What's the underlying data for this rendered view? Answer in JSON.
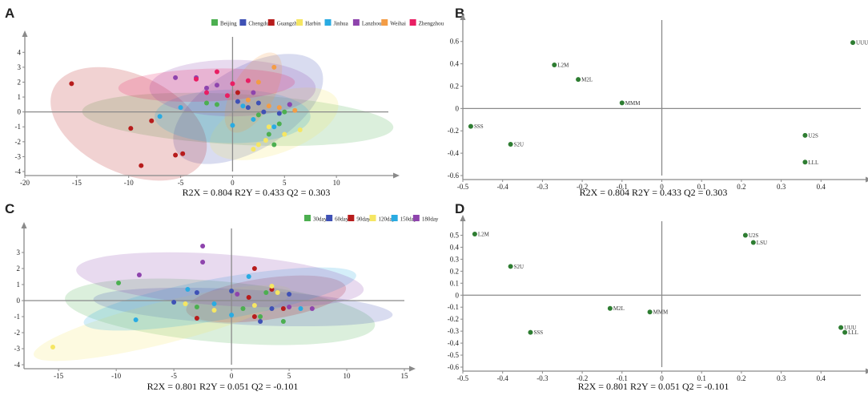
{
  "chart_data": [
    {
      "panel": "A",
      "type": "scatter",
      "stats": "R2X = 0.804  R2Y = 0.433  Q2 = 0.303",
      "xlim": [
        -20,
        15
      ],
      "ylim": [
        -4,
        4.5
      ],
      "xticks": [
        -20,
        -15,
        -10,
        -5,
        0,
        5,
        10
      ],
      "yticks": [
        -4,
        -3,
        -2,
        -1,
        0,
        1,
        2,
        3,
        4
      ],
      "series": [
        {
          "name": "Beijing",
          "color": "#4caf50",
          "ellipse": {
            "cx": 0.5,
            "cy": -0.5,
            "rx": 15,
            "ry": 1.7,
            "angle": -3
          },
          "points": [
            [
              -2.5,
              0.6
            ],
            [
              -1.5,
              0.5
            ],
            [
              2.5,
              -0.2
            ],
            [
              3.5,
              -1.5
            ],
            [
              4.5,
              -0.8
            ],
            [
              4.0,
              -2.2
            ],
            [
              5.0,
              0.0
            ]
          ]
        },
        {
          "name": "Chengdu",
          "color": "#3f51b5",
          "ellipse": {
            "cx": 1.5,
            "cy": 0.2,
            "rx": 8,
            "ry": 2.8,
            "angle": 30
          },
          "points": [
            [
              0.5,
              0.7
            ],
            [
              1.5,
              0.3
            ],
            [
              2.5,
              0.6
            ],
            [
              4.5,
              -0.1
            ],
            [
              5.5,
              0.5
            ],
            [
              3.0,
              0.0
            ]
          ]
        },
        {
          "name": "Guangzhou",
          "color": "#b71c1c",
          "ellipse": {
            "cx": -10,
            "cy": -0.8,
            "rx": 8,
            "ry": 3.3,
            "angle": -25
          },
          "points": [
            [
              -15.5,
              1.9
            ],
            [
              -9.8,
              -1.1
            ],
            [
              -7.8,
              -0.6
            ],
            [
              -8.8,
              -3.6
            ],
            [
              -5.5,
              -2.9
            ],
            [
              -4.8,
              -2.8
            ],
            [
              0.5,
              1.3
            ]
          ]
        },
        {
          "name": "Harbin",
          "color": "#f5e663",
          "ellipse": {
            "cx": 4,
            "cy": -0.8,
            "rx": 6.5,
            "ry": 2.0,
            "angle": 20
          },
          "points": [
            [
              2.0,
              -2.5
            ],
            [
              2.5,
              -2.2
            ],
            [
              3.5,
              -1.0
            ],
            [
              5.0,
              -1.5
            ],
            [
              6.5,
              -1.2
            ],
            [
              3.2,
              -1.9
            ]
          ]
        },
        {
          "name": "Jinhua",
          "color": "#29abe2",
          "ellipse": {
            "cx": 0,
            "cy": -0.3,
            "rx": 7.5,
            "ry": 1.8,
            "angle": 0
          },
          "points": [
            [
              -7.0,
              -0.3
            ],
            [
              -5.0,
              0.3
            ],
            [
              0.0,
              -0.9
            ],
            [
              1.0,
              0.4
            ],
            [
              2.0,
              -0.5
            ],
            [
              4.0,
              -1.0
            ]
          ]
        },
        {
          "name": "Lanzhou",
          "color": "#8e44ad",
          "ellipse": {
            "cx": 0,
            "cy": 1.6,
            "rx": 8,
            "ry": 1.9,
            "angle": 0
          },
          "points": [
            [
              -5.5,
              2.3
            ],
            [
              -3.5,
              2.3
            ],
            [
              -1.5,
              1.8
            ],
            [
              2.0,
              1.3
            ],
            [
              -2.5,
              1.6
            ],
            [
              5.5,
              0.5
            ]
          ]
        },
        {
          "name": "Weihai",
          "color": "#f39c45",
          "ellipse": {
            "cx": 2,
            "cy": 1.3,
            "rx": 4.3,
            "ry": 1.4,
            "angle": 60
          },
          "points": [
            [
              4.0,
              3.0
            ],
            [
              3.5,
              0.4
            ],
            [
              4.5,
              0.3
            ],
            [
              6.0,
              0.1
            ],
            [
              2.5,
              2.0
            ],
            [
              1.5,
              0.8
            ]
          ]
        },
        {
          "name": "Zhengzhou",
          "color": "#e91e63",
          "ellipse": {
            "cx": -2.5,
            "cy": 1.8,
            "rx": 8.5,
            "ry": 1.1,
            "angle": 2
          },
          "points": [
            [
              -3.5,
              2.2
            ],
            [
              -2.5,
              1.3
            ],
            [
              -1.5,
              2.7
            ],
            [
              0.0,
              1.9
            ],
            [
              1.5,
              2.1
            ],
            [
              -0.5,
              1.1
            ]
          ]
        }
      ]
    },
    {
      "panel": "B",
      "type": "scatter",
      "stats": "R2X = 0.804  R2Y = 0.433  Q2 = 0.303",
      "xlim": [
        -0.5,
        0.5
      ],
      "ylim": [
        -0.6,
        0.72
      ],
      "xticks": [
        -0.5,
        -0.4,
        -0.3,
        -0.2,
        -0.1,
        0,
        0.1,
        0.2,
        0.3,
        0.4
      ],
      "yticks": [
        -0.6,
        -0.4,
        -0.2,
        0,
        0.2,
        0.4,
        0.6
      ],
      "color": "#2e7d32",
      "points": [
        {
          "label": "UUU",
          "x": 0.48,
          "y": 0.59
        },
        {
          "label": "L2M",
          "x": -0.27,
          "y": 0.39
        },
        {
          "label": "M2L",
          "x": -0.21,
          "y": 0.26
        },
        {
          "label": "MMM",
          "x": -0.1,
          "y": 0.05
        },
        {
          "label": "SSS",
          "x": -0.48,
          "y": -0.16
        },
        {
          "label": "S2U",
          "x": -0.38,
          "y": -0.32
        },
        {
          "label": "U2S",
          "x": 0.36,
          "y": -0.24
        },
        {
          "label": "LLL",
          "x": 0.36,
          "y": -0.48
        }
      ]
    },
    {
      "panel": "C",
      "type": "scatter",
      "stats": "R2X = 0.801  R2Y = 0.051  Q2 = -0.101",
      "xlim": [
        -18,
        15
      ],
      "ylim": [
        -4,
        4
      ],
      "xticks": [
        -15,
        -10,
        -5,
        0,
        5,
        10,
        15
      ],
      "yticks": [
        -4,
        -3,
        -2,
        -1,
        0,
        1,
        2,
        3
      ],
      "series": [
        {
          "name": "30day",
          "color": "#4caf50",
          "ellipse": {
            "cx": -1,
            "cy": -0.7,
            "rx": 13.5,
            "ry": 1.9,
            "angle": -5
          },
          "points": [
            [
              -9.8,
              1.1
            ],
            [
              2.5,
              -1.0
            ],
            [
              3.0,
              0.5
            ],
            [
              1.0,
              -0.5
            ],
            [
              4.5,
              -1.3
            ],
            [
              -3.0,
              -0.4
            ]
          ]
        },
        {
          "name": "60day",
          "color": "#3f51b5",
          "ellipse": {
            "cx": 1,
            "cy": -0.4,
            "rx": 13,
            "ry": 1.1,
            "angle": -3
          },
          "points": [
            [
              -5.0,
              -0.1
            ],
            [
              -3.0,
              0.5
            ],
            [
              2.5,
              -1.3
            ],
            [
              3.5,
              -0.5
            ],
            [
              0.0,
              0.6
            ],
            [
              5.0,
              0.4
            ]
          ]
        },
        {
          "name": "90day",
          "color": "#b71c1c",
          "ellipse": {
            "cx": 3,
            "cy": 0.1,
            "rx": 7,
            "ry": 1.3,
            "angle": 8
          },
          "points": [
            [
              2.0,
              2.0
            ],
            [
              3.5,
              0.7
            ],
            [
              -3.0,
              -1.1
            ],
            [
              1.5,
              0.2
            ],
            [
              4.5,
              -0.5
            ],
            [
              2.0,
              -1.0
            ]
          ]
        },
        {
          "name": "120day",
          "color": "#f5e663",
          "ellipse": {
            "cx": -6,
            "cy": -1.4,
            "rx": 11.5,
            "ry": 1.3,
            "angle": 14
          },
          "points": [
            [
              -15.5,
              -2.9
            ],
            [
              3.5,
              0.9
            ],
            [
              -1.5,
              -0.6
            ],
            [
              2.0,
              -0.3
            ],
            [
              -4.0,
              -0.2
            ],
            [
              4.0,
              0.5
            ]
          ]
        },
        {
          "name": "150day",
          "color": "#29abe2",
          "ellipse": {
            "cx": -1,
            "cy": 0.1,
            "rx": 12,
            "ry": 1.3,
            "angle": 10
          },
          "points": [
            [
              -8.3,
              -1.2
            ],
            [
              -3.8,
              0.7
            ],
            [
              1.5,
              1.5
            ],
            [
              0.0,
              -0.9
            ],
            [
              6.0,
              -0.5
            ],
            [
              -1.5,
              -0.2
            ]
          ]
        },
        {
          "name": "180day",
          "color": "#8e44ad",
          "ellipse": {
            "cx": -1,
            "cy": 1.3,
            "rx": 12.5,
            "ry": 1.6,
            "angle": -4
          },
          "points": [
            [
              -2.5,
              3.4
            ],
            [
              -2.5,
              2.4
            ],
            [
              -8.0,
              1.6
            ],
            [
              5.0,
              -0.4
            ],
            [
              7.0,
              -0.5
            ],
            [
              0.5,
              0.4
            ]
          ]
        }
      ]
    },
    {
      "panel": "D",
      "type": "scatter",
      "stats": "R2X = 0.801  R2Y = 0.051  Q2 = -0.101",
      "xlim": [
        -0.5,
        0.5
      ],
      "ylim": [
        -0.6,
        0.55
      ],
      "xticks": [
        -0.5,
        -0.4,
        -0.3,
        -0.2,
        -0.1,
        0,
        0.1,
        0.2,
        0.3,
        0.4
      ],
      "yticks": [
        -0.6,
        -0.5,
        -0.4,
        -0.3,
        -0.2,
        -0.1,
        0,
        0.1,
        0.2,
        0.3,
        0.4,
        0.5
      ],
      "color": "#2e7d32",
      "points": [
        {
          "label": "L2M",
          "x": -0.47,
          "y": 0.51
        },
        {
          "label": "S2U",
          "x": -0.38,
          "y": 0.24
        },
        {
          "label": "U2S",
          "x": 0.21,
          "y": 0.5
        },
        {
          "label": "LSU",
          "x": 0.23,
          "y": 0.44
        },
        {
          "label": "M2L",
          "x": -0.13,
          "y": -0.11
        },
        {
          "label": "MMM",
          "x": -0.03,
          "y": -0.14
        },
        {
          "label": "SSS",
          "x": -0.33,
          "y": -0.31
        },
        {
          "label": "UUU",
          "x": 0.45,
          "y": -0.27
        },
        {
          "label": "LLL",
          "x": 0.46,
          "y": -0.31
        }
      ]
    }
  ]
}
